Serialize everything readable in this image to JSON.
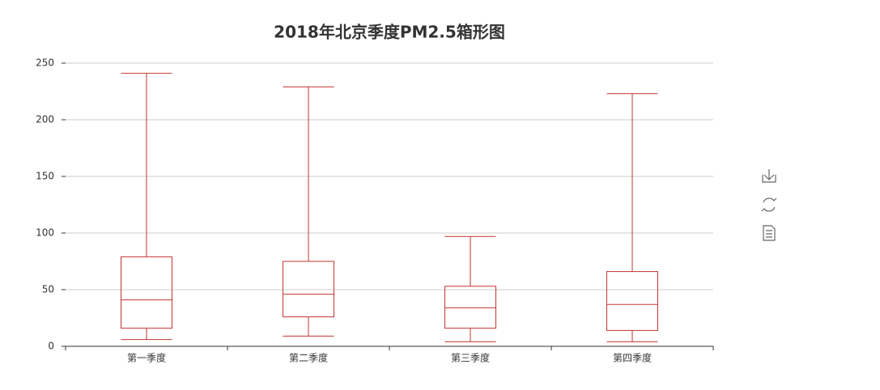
{
  "chart_data": {
    "type": "boxplot",
    "title": "2018年北京季度PM2.5箱形图",
    "categories": [
      "第一季度",
      "第二季度",
      "第三季度",
      "第四季度"
    ],
    "series": [
      {
        "color": "#c23531",
        "values": [
          [
            6,
            16,
            41,
            79,
            241
          ],
          [
            9,
            26,
            46,
            75,
            229
          ],
          [
            4,
            16,
            34,
            53,
            97
          ],
          [
            4,
            14,
            37,
            66,
            223
          ]
        ]
      }
    ],
    "ylim": [
      0,
      250
    ],
    "yticks": [
      0,
      50,
      100,
      150,
      200,
      250
    ],
    "grid": true
  }
}
